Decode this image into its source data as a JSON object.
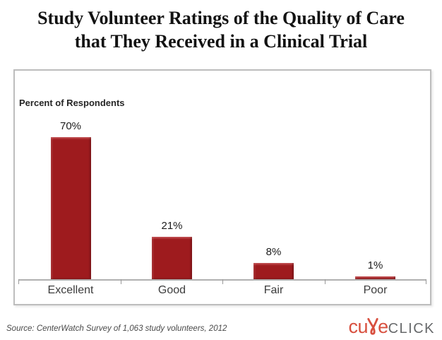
{
  "title": {
    "line1": "Study Volunteer Ratings of the Quality of Care",
    "line2": "that They Received in a Clinical Trial"
  },
  "chart": {
    "ylabel": "Percent of Respondents"
  },
  "chart_data": {
    "type": "bar",
    "title": "Study Volunteer Ratings of the Quality of Care that They Received in a Clinical Trial",
    "categories": [
      "Excellent",
      "Good",
      "Fair",
      "Poor"
    ],
    "values": [
      70,
      21,
      8,
      1
    ],
    "data_labels": [
      "70%",
      "21%",
      "8%",
      "1%"
    ],
    "xlabel": "",
    "ylabel": "Percent of Respondents",
    "ylim": [
      0,
      75
    ],
    "grid": false,
    "legend": "none",
    "bar_color": "#9E1B1E",
    "bar_highlight_color": "#C4494C"
  },
  "footer": {
    "source": "Source: CenterWatch Survey of 1,063 study volunteers, 2012"
  },
  "logo": {
    "brand": "cureCLICK",
    "red_prefix": "cu",
    "red_suffix": "e",
    "gray_text": "CLICK",
    "red_color": "#D8503F",
    "gray_color": "#67696B"
  },
  "colors": {
    "axis": "#B0B0B0",
    "frame_border": "#BDBDBD"
  }
}
